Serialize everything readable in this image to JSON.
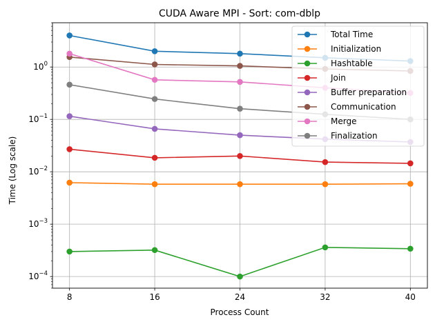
{
  "chart_data": {
    "type": "line",
    "title": "CUDA Aware MPI - Sort: com-dblp",
    "xlabel": "Process Count",
    "ylabel": "Time (Log scale)",
    "yscale": "log",
    "x": [
      8,
      16,
      24,
      32,
      40
    ],
    "x_ticks": [
      "8",
      "16",
      "24",
      "32",
      "40"
    ],
    "y_ticks": [
      {
        "value": 0.0001,
        "base": "10",
        "exp": "−4"
      },
      {
        "value": 0.001,
        "base": "10",
        "exp": "−3"
      },
      {
        "value": 0.01,
        "base": "10",
        "exp": "−2"
      },
      {
        "value": 0.1,
        "base": "10",
        "exp": "−1"
      },
      {
        "value": 1,
        "base": "10",
        "exp": "0"
      }
    ],
    "ylim": [
      6e-05,
      7
    ],
    "grid": true,
    "legend": "top-right",
    "series": [
      {
        "name": "Total Time",
        "color": "#1f77b4",
        "values": [
          4.0,
          2.0,
          1.8,
          1.5,
          1.3
        ]
      },
      {
        "name": "Initialization",
        "color": "#ff7f0e",
        "values": [
          0.0062,
          0.0058,
          0.0058,
          0.0058,
          0.0059
        ]
      },
      {
        "name": "Hashtable",
        "color": "#2ca02c",
        "values": [
          0.0003,
          0.00032,
          0.0001,
          0.00036,
          0.00034
        ]
      },
      {
        "name": "Join",
        "color": "#d62728",
        "values": [
          0.027,
          0.0185,
          0.02,
          0.0153,
          0.0145
        ]
      },
      {
        "name": "Buffer preparation",
        "color": "#9467bd",
        "values": [
          0.115,
          0.066,
          0.05,
          0.042,
          0.037
        ]
      },
      {
        "name": "Communication",
        "color": "#8c564b",
        "values": [
          1.55,
          1.12,
          1.05,
          0.92,
          0.84
        ]
      },
      {
        "name": "Merge",
        "color": "#e377c2",
        "values": [
          1.8,
          0.57,
          0.52,
          0.4,
          0.32
        ]
      },
      {
        "name": "Finalization",
        "color": "#7f7f7f",
        "values": [
          0.46,
          0.245,
          0.16,
          0.125,
          0.1
        ]
      }
    ]
  }
}
